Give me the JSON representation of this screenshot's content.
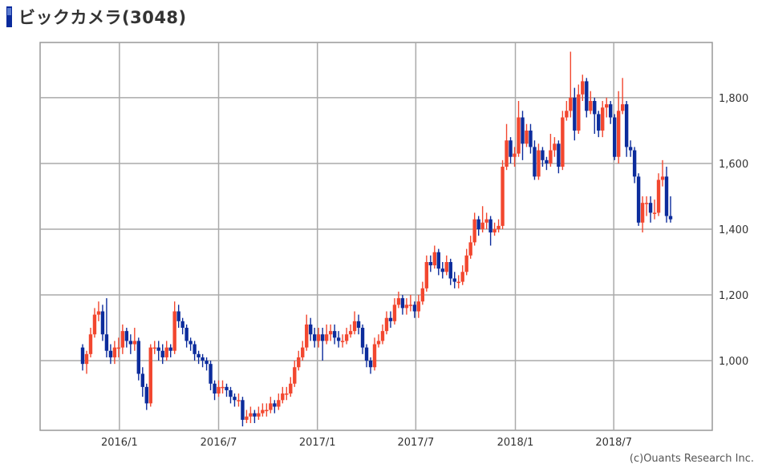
{
  "header": {
    "title": "ビックカメラ(3048)",
    "icon": "bar-icon"
  },
  "credit": "(c)Ouants Research Inc.",
  "colors": {
    "up": "#f2472f",
    "down": "#0c2c9c",
    "grid": "#aaaaaa",
    "frame": "#999999"
  },
  "chart_data": {
    "type": "candlestick",
    "title": "ビックカメラ(3048)",
    "interval": "weekly",
    "ylim": [
      788,
      1968
    ],
    "y_ticks": [
      {
        "label": "1,000",
        "value": 1000
      },
      {
        "label": "1,200",
        "value": 1200
      },
      {
        "label": "1,400",
        "value": 1400
      },
      {
        "label": "1,600",
        "value": 1600
      },
      {
        "label": "1,800",
        "value": 1800
      }
    ],
    "x_ticks": [
      {
        "label": "2016/1",
        "index": 9.2
      },
      {
        "label": "2016/7",
        "index": 34.0
      },
      {
        "label": "2017/1",
        "index": 58.7
      },
      {
        "label": "2017/7",
        "index": 83.3
      },
      {
        "label": "2018/1",
        "index": 108.2
      },
      {
        "label": "2018/7",
        "index": 132.8
      }
    ],
    "grid": true,
    "candle_format": [
      "open",
      "high",
      "low",
      "close"
    ],
    "candles": [
      [
        1040,
        1050,
        970,
        990
      ],
      [
        990,
        1030,
        960,
        1020
      ],
      [
        1020,
        1100,
        1010,
        1080
      ],
      [
        1080,
        1160,
        1070,
        1140
      ],
      [
        1140,
        1180,
        1120,
        1150
      ],
      [
        1150,
        1170,
        1060,
        1080
      ],
      [
        1080,
        1190,
        1010,
        1030
      ],
      [
        1030,
        1050,
        990,
        1010
      ],
      [
        1010,
        1060,
        990,
        1040
      ],
      [
        1040,
        1070,
        1010,
        1040
      ],
      [
        1040,
        1110,
        1020,
        1090
      ],
      [
        1090,
        1100,
        1040,
        1060
      ],
      [
        1060,
        1080,
        1020,
        1050
      ],
      [
        1050,
        1100,
        1030,
        1060
      ],
      [
        1060,
        1070,
        940,
        960
      ],
      [
        960,
        980,
        890,
        920
      ],
      [
        920,
        930,
        850,
        870
      ],
      [
        870,
        1050,
        860,
        1040
      ],
      [
        1040,
        1060,
        1020,
        1040
      ],
      [
        1040,
        1060,
        1000,
        1030
      ],
      [
        1030,
        1050,
        990,
        1010
      ],
      [
        1010,
        1060,
        1000,
        1040
      ],
      [
        1040,
        1050,
        1010,
        1030
      ],
      [
        1030,
        1180,
        1020,
        1150
      ],
      [
        1150,
        1170,
        1100,
        1120
      ],
      [
        1120,
        1130,
        1080,
        1100
      ],
      [
        1100,
        1110,
        1040,
        1060
      ],
      [
        1060,
        1070,
        1030,
        1050
      ],
      [
        1050,
        1060,
        1000,
        1020
      ],
      [
        1020,
        1030,
        990,
        1010
      ],
      [
        1010,
        1020,
        980,
        1000
      ],
      [
        1000,
        1010,
        970,
        990
      ],
      [
        990,
        1000,
        910,
        930
      ],
      [
        930,
        940,
        880,
        900
      ],
      [
        900,
        940,
        890,
        920
      ],
      [
        920,
        940,
        900,
        920
      ],
      [
        920,
        930,
        890,
        910
      ],
      [
        910,
        920,
        870,
        890
      ],
      [
        890,
        900,
        860,
        880
      ],
      [
        880,
        900,
        860,
        880
      ],
      [
        880,
        890,
        800,
        820
      ],
      [
        820,
        850,
        810,
        830
      ],
      [
        830,
        860,
        810,
        840
      ],
      [
        840,
        850,
        810,
        830
      ],
      [
        830,
        860,
        820,
        840
      ],
      [
        840,
        870,
        830,
        850
      ],
      [
        850,
        870,
        830,
        850
      ],
      [
        850,
        890,
        840,
        870
      ],
      [
        870,
        880,
        840,
        860
      ],
      [
        860,
        900,
        850,
        880
      ],
      [
        880,
        920,
        870,
        900
      ],
      [
        900,
        920,
        880,
        900
      ],
      [
        900,
        950,
        890,
        930
      ],
      [
        930,
        1000,
        920,
        980
      ],
      [
        980,
        1030,
        970,
        1010
      ],
      [
        1010,
        1060,
        1000,
        1040
      ],
      [
        1040,
        1140,
        1030,
        1110
      ],
      [
        1110,
        1130,
        1060,
        1080
      ],
      [
        1080,
        1100,
        1040,
        1060
      ],
      [
        1060,
        1100,
        1040,
        1080
      ],
      [
        1080,
        1100,
        1000,
        1060
      ],
      [
        1060,
        1110,
        1050,
        1080
      ],
      [
        1080,
        1110,
        1060,
        1090
      ],
      [
        1090,
        1110,
        1050,
        1070
      ],
      [
        1070,
        1090,
        1040,
        1060
      ],
      [
        1060,
        1080,
        1040,
        1060
      ],
      [
        1060,
        1100,
        1050,
        1080
      ],
      [
        1080,
        1110,
        1070,
        1090
      ],
      [
        1090,
        1150,
        1080,
        1120
      ],
      [
        1120,
        1140,
        1080,
        1100
      ],
      [
        1100,
        1110,
        1020,
        1040
      ],
      [
        1040,
        1050,
        980,
        1000
      ],
      [
        1000,
        1010,
        960,
        980
      ],
      [
        980,
        1070,
        970,
        1050
      ],
      [
        1050,
        1080,
        1040,
        1060
      ],
      [
        1060,
        1110,
        1050,
        1090
      ],
      [
        1090,
        1150,
        1080,
        1130
      ],
      [
        1130,
        1150,
        1100,
        1120
      ],
      [
        1120,
        1190,
        1110,
        1170
      ],
      [
        1170,
        1210,
        1160,
        1190
      ],
      [
        1190,
        1200,
        1140,
        1160
      ],
      [
        1160,
        1190,
        1140,
        1170
      ],
      [
        1170,
        1200,
        1150,
        1170
      ],
      [
        1170,
        1180,
        1130,
        1150
      ],
      [
        1150,
        1200,
        1130,
        1180
      ],
      [
        1180,
        1240,
        1170,
        1220
      ],
      [
        1220,
        1320,
        1210,
        1300
      ],
      [
        1300,
        1320,
        1270,
        1290
      ],
      [
        1290,
        1350,
        1280,
        1330
      ],
      [
        1330,
        1340,
        1260,
        1280
      ],
      [
        1280,
        1300,
        1250,
        1270
      ],
      [
        1270,
        1320,
        1260,
        1300
      ],
      [
        1300,
        1310,
        1230,
        1250
      ],
      [
        1250,
        1270,
        1220,
        1240
      ],
      [
        1240,
        1260,
        1220,
        1240
      ],
      [
        1240,
        1290,
        1230,
        1270
      ],
      [
        1270,
        1340,
        1260,
        1320
      ],
      [
        1320,
        1380,
        1310,
        1360
      ],
      [
        1360,
        1450,
        1350,
        1430
      ],
      [
        1430,
        1440,
        1380,
        1400
      ],
      [
        1400,
        1470,
        1390,
        1420
      ],
      [
        1420,
        1450,
        1400,
        1430
      ],
      [
        1430,
        1440,
        1350,
        1390
      ],
      [
        1390,
        1420,
        1380,
        1400
      ],
      [
        1400,
        1430,
        1390,
        1410
      ],
      [
        1410,
        1610,
        1400,
        1590
      ],
      [
        1590,
        1720,
        1580,
        1670
      ],
      [
        1670,
        1680,
        1600,
        1620
      ],
      [
        1620,
        1650,
        1590,
        1630
      ],
      [
        1630,
        1790,
        1620,
        1740
      ],
      [
        1740,
        1760,
        1610,
        1660
      ],
      [
        1660,
        1720,
        1650,
        1700
      ],
      [
        1700,
        1720,
        1630,
        1650
      ],
      [
        1650,
        1670,
        1550,
        1560
      ],
      [
        1560,
        1660,
        1550,
        1640
      ],
      [
        1640,
        1650,
        1590,
        1610
      ],
      [
        1610,
        1620,
        1580,
        1600
      ],
      [
        1600,
        1690,
        1590,
        1640
      ],
      [
        1640,
        1680,
        1620,
        1660
      ],
      [
        1660,
        1670,
        1570,
        1590
      ],
      [
        1590,
        1760,
        1580,
        1740
      ],
      [
        1740,
        1790,
        1730,
        1760
      ],
      [
        1760,
        1940,
        1740,
        1800
      ],
      [
        1800,
        1830,
        1670,
        1700
      ],
      [
        1700,
        1840,
        1690,
        1810
      ],
      [
        1810,
        1870,
        1790,
        1850
      ],
      [
        1850,
        1860,
        1740,
        1760
      ],
      [
        1760,
        1820,
        1750,
        1790
      ],
      [
        1790,
        1800,
        1690,
        1750
      ],
      [
        1750,
        1760,
        1680,
        1700
      ],
      [
        1700,
        1790,
        1680,
        1770
      ],
      [
        1770,
        1800,
        1740,
        1780
      ],
      [
        1780,
        1790,
        1720,
        1740
      ],
      [
        1740,
        1750,
        1610,
        1620
      ],
      [
        1620,
        1820,
        1600,
        1760
      ],
      [
        1760,
        1860,
        1750,
        1780
      ],
      [
        1780,
        1790,
        1620,
        1650
      ],
      [
        1650,
        1670,
        1620,
        1640
      ],
      [
        1640,
        1650,
        1540,
        1560
      ],
      [
        1560,
        1570,
        1410,
        1420
      ],
      [
        1420,
        1500,
        1390,
        1480
      ],
      [
        1480,
        1500,
        1440,
        1480
      ],
      [
        1480,
        1500,
        1420,
        1450
      ],
      [
        1450,
        1490,
        1430,
        1450
      ],
      [
        1450,
        1570,
        1440,
        1550
      ],
      [
        1550,
        1610,
        1530,
        1560
      ],
      [
        1560,
        1590,
        1420,
        1440
      ],
      [
        1440,
        1500,
        1420,
        1430
      ]
    ]
  }
}
